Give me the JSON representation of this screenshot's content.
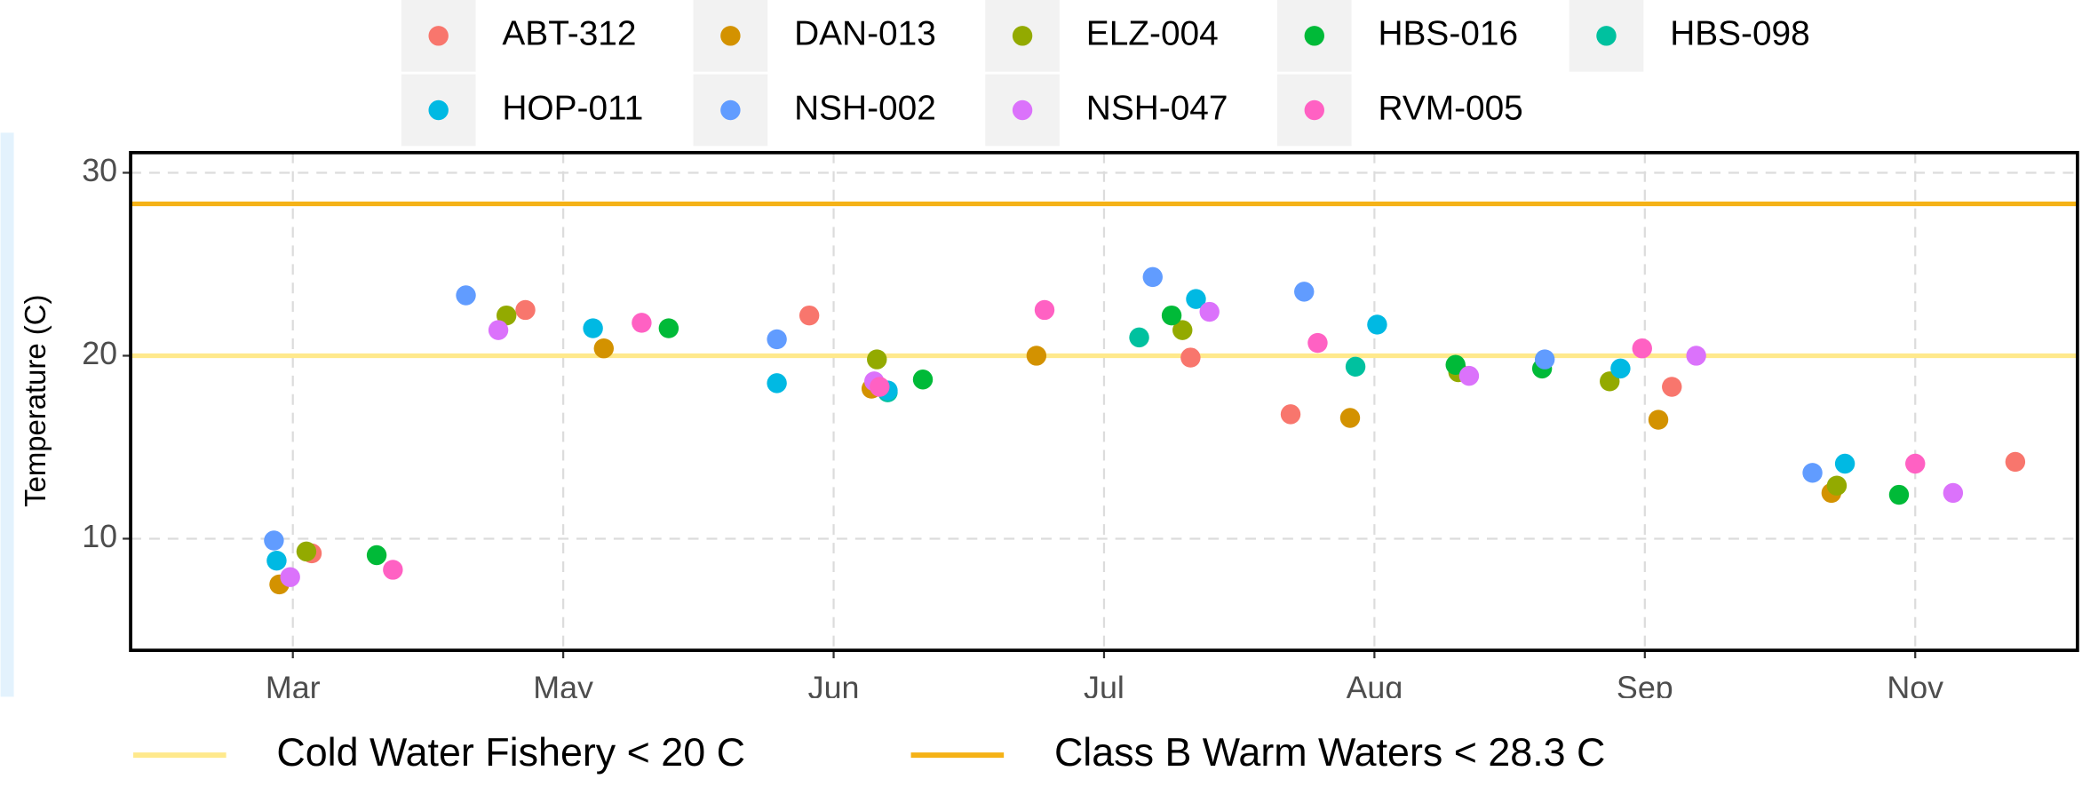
{
  "chart_data": {
    "type": "scatter",
    "ylabel": "Temperature (C)",
    "grid": true,
    "xlim": [
      -0.6,
      6.6
    ],
    "ylim": [
      3.9,
      31.1
    ],
    "xticks": [
      {
        "value": 0,
        "label": "Mar"
      },
      {
        "value": 1,
        "label": "May"
      },
      {
        "value": 2,
        "label": "Jun"
      },
      {
        "value": 3,
        "label": "Jul"
      },
      {
        "value": 4,
        "label": "Aug"
      },
      {
        "value": 5,
        "label": "Sep"
      },
      {
        "value": 6,
        "label": "Nov"
      }
    ],
    "yticks": [
      10,
      20,
      30
    ],
    "hlines": [
      {
        "label": "Cold Water Fishery < 20 C",
        "value": 20,
        "color": "#FFE98C"
      },
      {
        "label": "Class B Warm Waters < 28.3 C",
        "value": 28.3,
        "color": "#F5B216"
      }
    ],
    "series": [
      {
        "name": "ABT-312",
        "color": "#F8766D",
        "x": [
          0.07,
          0.86,
          1.91,
          3.32,
          3.69,
          5.1,
          6.37
        ],
        "y": [
          9.2,
          22.5,
          22.2,
          19.9,
          16.8,
          18.3,
          14.2
        ]
      },
      {
        "name": "DAN-013",
        "color": "#D39200",
        "x": [
          -0.05,
          1.15,
          2.14,
          2.75,
          3.91,
          5.05,
          5.69
        ],
        "y": [
          7.5,
          20.4,
          18.2,
          20.0,
          16.6,
          16.5,
          12.5
        ]
      },
      {
        "name": "ELZ-004",
        "color": "#93AA00",
        "x": [
          0.05,
          0.79,
          2.16,
          3.29,
          4.31,
          4.87,
          5.71
        ],
        "y": [
          9.3,
          22.2,
          19.8,
          21.4,
          19.1,
          18.6,
          12.9
        ]
      },
      {
        "name": "HBS-016",
        "color": "#00BA38",
        "x": [
          0.31,
          1.39,
          2.33,
          3.25,
          4.3,
          4.62,
          5.94
        ],
        "y": [
          9.1,
          21.5,
          18.7,
          22.2,
          19.5,
          19.3,
          12.4
        ]
      },
      {
        "name": "HBS-098",
        "color": "#00C19F",
        "x": [
          2.2,
          3.13,
          3.93
        ],
        "y": [
          18.0,
          21.0,
          19.4
        ]
      },
      {
        "name": "HOP-011",
        "color": "#00B9E3",
        "x": [
          -0.06,
          1.11,
          1.79,
          2.2,
          3.34,
          4.01,
          4.91,
          5.74
        ],
        "y": [
          8.8,
          21.5,
          18.5,
          18.1,
          23.1,
          21.7,
          19.3,
          14.1
        ]
      },
      {
        "name": "NSH-002",
        "color": "#619CFF",
        "x": [
          -0.07,
          0.64,
          1.79,
          3.18,
          3.74,
          4.63,
          5.62
        ],
        "y": [
          9.9,
          23.3,
          20.9,
          24.3,
          23.5,
          19.8,
          13.6
        ]
      },
      {
        "name": "NSH-047",
        "color": "#DB72FB",
        "x": [
          -0.01,
          0.76,
          2.15,
          3.39,
          4.35,
          5.19,
          6.14
        ],
        "y": [
          7.9,
          21.4,
          18.6,
          22.4,
          18.9,
          20.0,
          12.5
        ]
      },
      {
        "name": "RVM-005",
        "color": "#FF61C3",
        "x": [
          0.37,
          1.29,
          2.17,
          2.78,
          3.79,
          4.99,
          6.0
        ],
        "y": [
          8.3,
          21.8,
          18.3,
          22.5,
          20.7,
          20.4,
          14.1
        ]
      }
    ]
  }
}
